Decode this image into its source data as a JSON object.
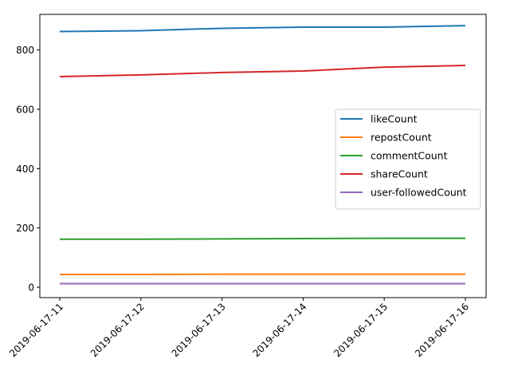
{
  "chart_data": {
    "type": "line",
    "title": "",
    "xlabel": "",
    "ylabel": "",
    "x": [
      "2019-06-17-11",
      "2019-06-17-12",
      "2019-06-17-13",
      "2019-06-17-14",
      "2019-06-17-15",
      "2019-06-17-16"
    ],
    "ylim": [
      -35,
      920
    ],
    "yticks": [
      0,
      200,
      400,
      600,
      800
    ],
    "grid": false,
    "legend_position": "center-right",
    "series": [
      {
        "name": "likeCount",
        "color": "#1f77b4",
        "values": [
          862,
          865,
          873,
          877,
          877,
          882
        ]
      },
      {
        "name": "repostCount",
        "color": "#ff7f0e",
        "values": [
          43,
          43,
          44,
          44,
          44,
          44
        ]
      },
      {
        "name": "commentCount",
        "color": "#2ca02c",
        "values": [
          162,
          162,
          163,
          164,
          165,
          165
        ]
      },
      {
        "name": "shareCount",
        "color": "#d62728",
        "values": [
          710,
          716,
          724,
          729,
          742,
          748
        ]
      },
      {
        "name": "user-followedCount",
        "color": "#9467bd",
        "values": [
          12,
          12,
          12,
          12,
          12,
          12
        ]
      }
    ]
  }
}
